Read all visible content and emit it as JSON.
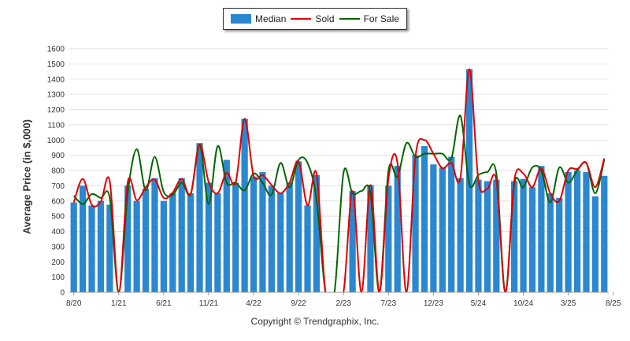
{
  "chart_data": {
    "type": "bar",
    "ylabel": "Average Price (in $,000)",
    "ylim": [
      0,
      1600
    ],
    "yticks": [
      0,
      100,
      200,
      300,
      400,
      500,
      600,
      700,
      800,
      900,
      1000,
      1100,
      1200,
      1300,
      1400,
      1500,
      1600
    ],
    "grid": true,
    "legend_position": "top-center",
    "x_tick_labels": [
      {
        "index": 0,
        "label": "8/20"
      },
      {
        "index": 5,
        "label": "1/21"
      },
      {
        "index": 10,
        "label": "6/21"
      },
      {
        "index": 15,
        "label": "11/21"
      },
      {
        "index": 20,
        "label": "4/22"
      },
      {
        "index": 25,
        "label": "9/22"
      },
      {
        "index": 30,
        "label": "2/23"
      },
      {
        "index": 35,
        "label": "7/23"
      },
      {
        "index": 40,
        "label": "12/23"
      },
      {
        "index": 45,
        "label": "5/24"
      },
      {
        "index": 50,
        "label": "10/24"
      },
      {
        "index": 55,
        "label": "3/25"
      },
      {
        "index": 60,
        "label": "8/25"
      }
    ],
    "series": [
      {
        "name": "Median",
        "kind": "bar",
        "color": "#2b87cf",
        "values": [
          590,
          700,
          570,
          600,
          575,
          0,
          700,
          600,
          680,
          750,
          600,
          650,
          750,
          650,
          980,
          720,
          650,
          870,
          720,
          1140,
          760,
          790,
          700,
          650,
          720,
          860,
          570,
          770,
          0,
          0,
          0,
          665,
          0,
          705,
          0,
          700,
          830,
          0,
          900,
          960,
          840,
          820,
          890,
          750,
          1465,
          740,
          730,
          740,
          0,
          730,
          745,
          690,
          830,
          650,
          620,
          790,
          800,
          790,
          630,
          765
        ]
      },
      {
        "name": "Sold",
        "kind": "line",
        "color": "#e00000",
        "values": [
          590,
          745,
          575,
          595,
          730,
          0,
          725,
          605,
          690,
          740,
          620,
          655,
          745,
          645,
          970,
          725,
          650,
          785,
          720,
          1140,
          765,
          770,
          705,
          650,
          720,
          860,
          570,
          780,
          0,
          0,
          0,
          665,
          0,
          705,
          0,
          745,
          850,
          0,
          890,
          1000,
          910,
          815,
          850,
          750,
          1465,
          735,
          680,
          735,
          0,
          735,
          780,
          690,
          815,
          650,
          600,
          800,
          810,
          850,
          690,
          880
        ]
      },
      {
        "name": "For Sale",
        "kind": "line",
        "color": "#006600",
        "values": [
          635,
          580,
          645,
          620,
          620,
          0,
          650,
          940,
          670,
          890,
          660,
          640,
          720,
          645,
          970,
          580,
          960,
          720,
          720,
          670,
          780,
          720,
          640,
          850,
          690,
          870,
          850,
          610,
          0,
          0,
          785,
          650,
          665,
          650,
          0,
          800,
          760,
          980,
          890,
          910,
          910,
          910,
          880,
          1160,
          710,
          770,
          790,
          780,
          0,
          710,
          690,
          820,
          800,
          590,
          820,
          720,
          800,
          850,
          650,
          870
        ]
      }
    ]
  },
  "legend": {
    "median_label": "Median",
    "sold_label": "Sold",
    "for_sale_label": "For Sale"
  },
  "ylabel": "Average Price (in $,000)",
  "copyright": "Copyright © Trendgraphix, Inc."
}
